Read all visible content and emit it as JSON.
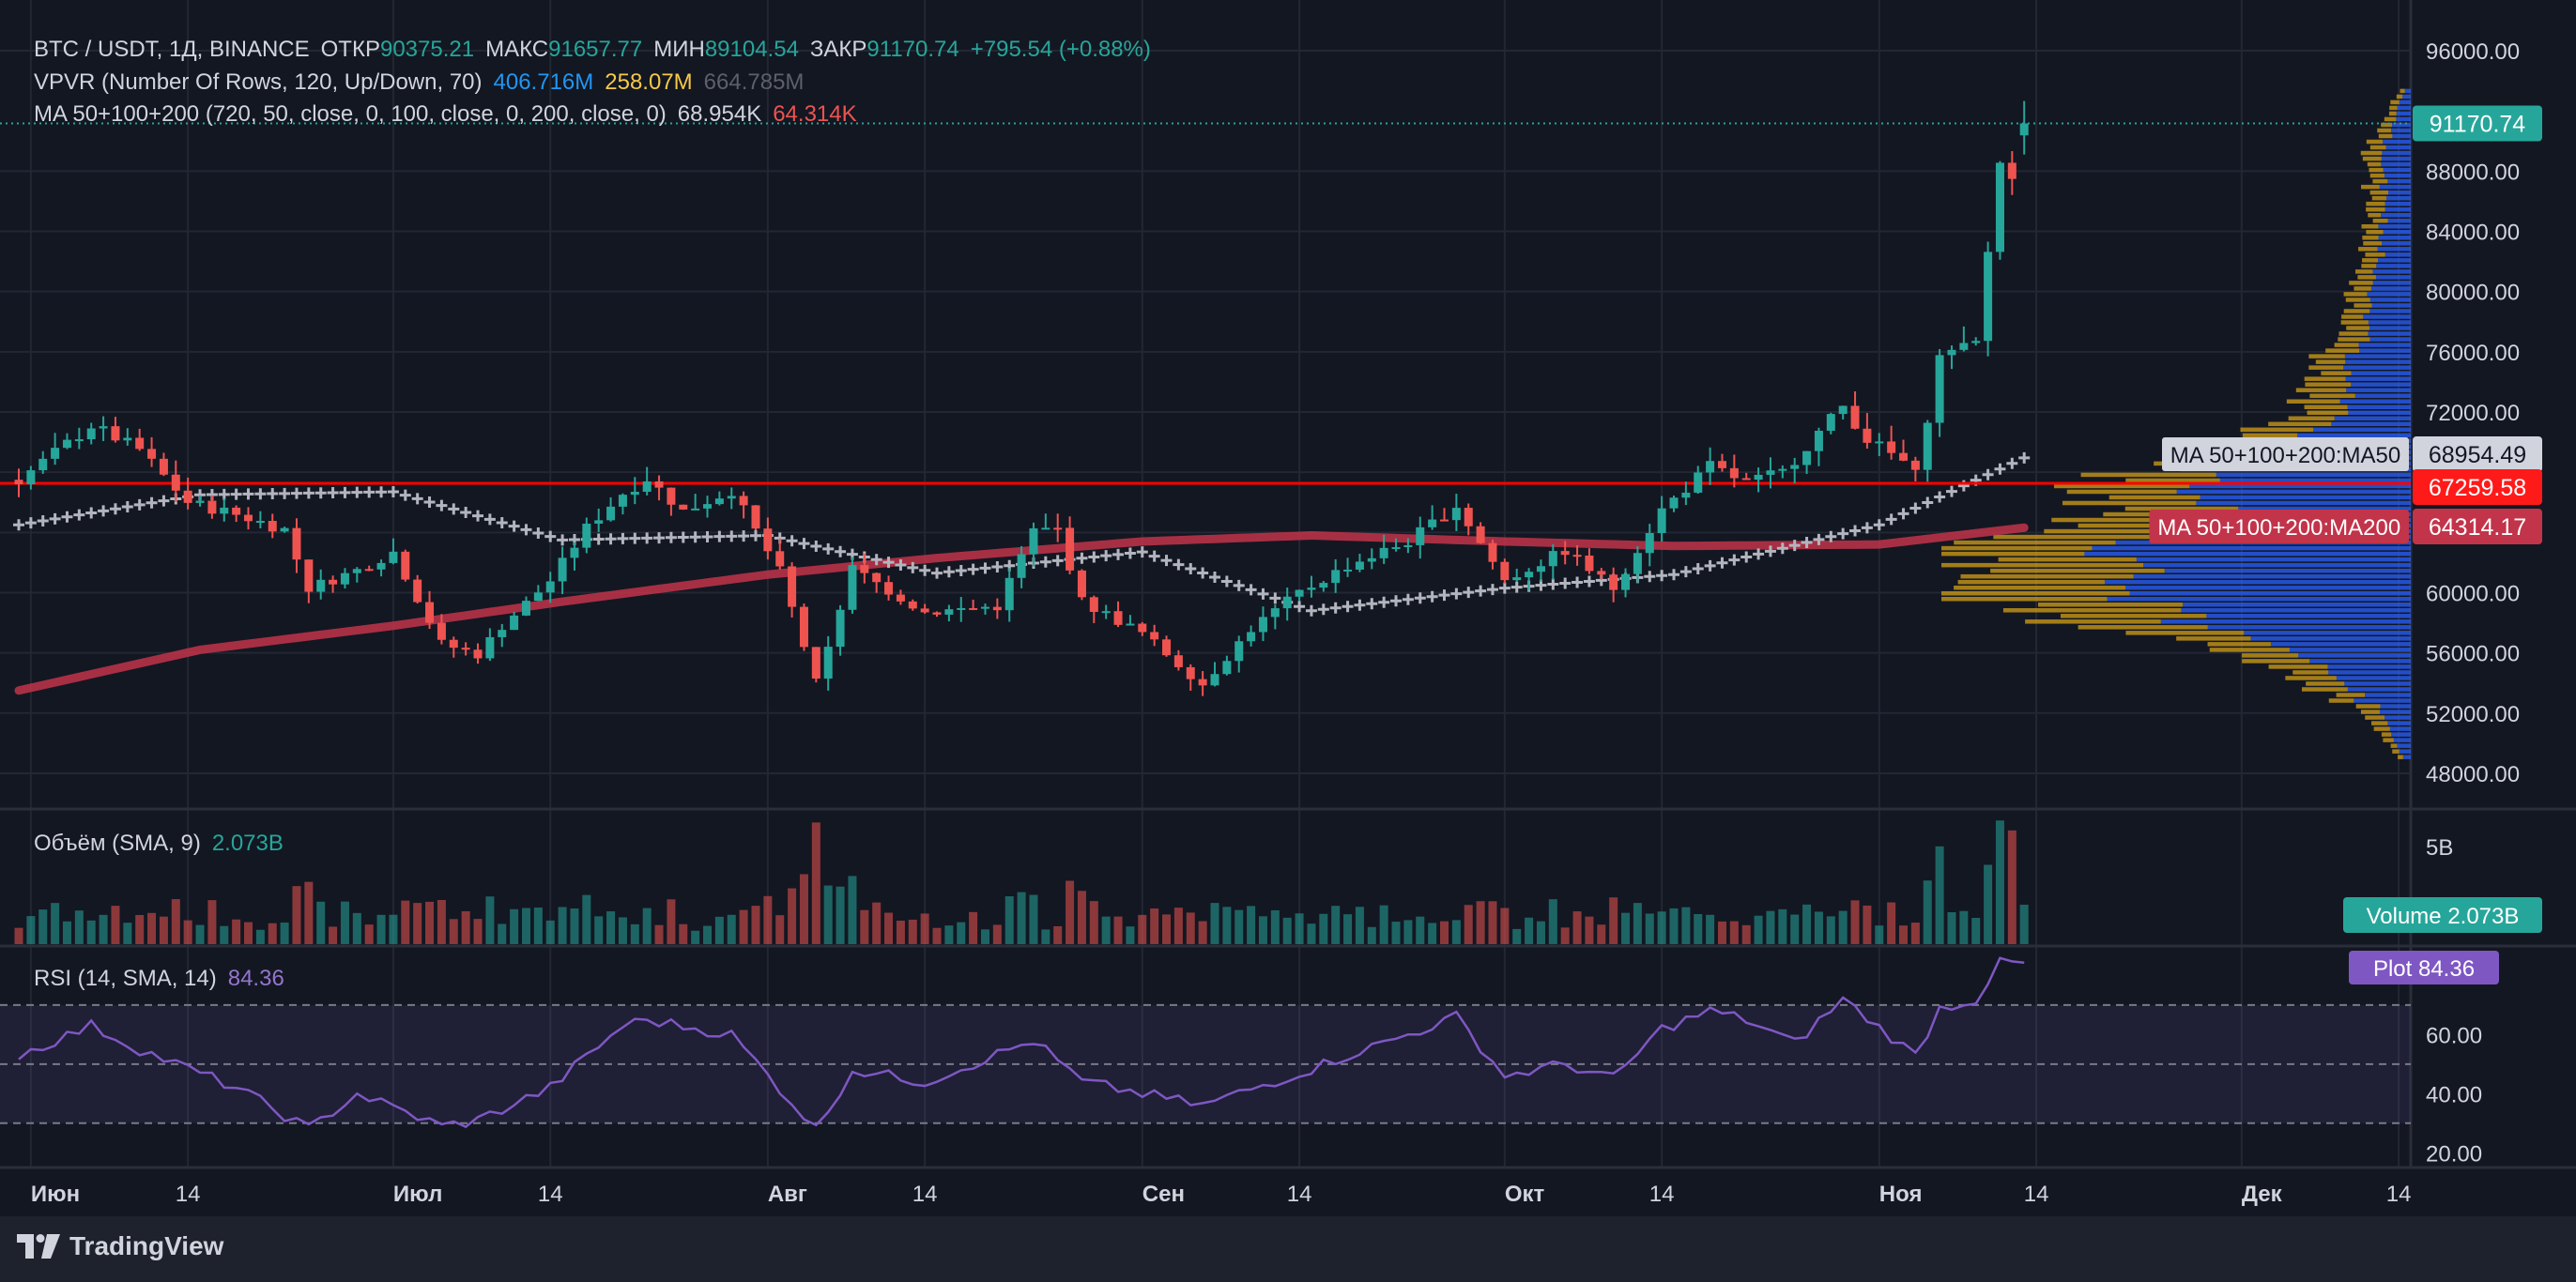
{
  "header": {
    "symbol": "BTC / USDT, 1Д, BINANCE",
    "open_label": "ОТКР",
    "open_value": "90375.21",
    "high_label": "МАКС",
    "high_value": "91657.77",
    "low_label": "МИН",
    "low_value": "89104.54",
    "close_label": "ЗАКР",
    "close_value": "91170.74",
    "change": "+795.54 (+0.88%)"
  },
  "vpvr": {
    "label": "VPVR (Number Of Rows, 120, Up/Down, 70)",
    "up_volume": "406.716M",
    "down_volume": "258.07M",
    "total_volume": "664.785M"
  },
  "ma": {
    "label": "MA 50+100+200 (720, 50, close, 0, 100, close, 0, 200, close, 0)",
    "ma50_value": "68.954K",
    "ma200_value": "64.314K"
  },
  "volume_legend": {
    "label": "Объём (SMA, 9)",
    "value": "2.073B"
  },
  "rsi_legend": {
    "label": "RSI (14, SMA, 14)",
    "value": "84.36"
  },
  "brand": {
    "name": "TradingView"
  },
  "colors": {
    "up": "#26a69a",
    "down": "#ef5350",
    "ma50": "#b2b5be",
    "ma200": "#c2344a",
    "hline": "#ff0000",
    "vp_up": "#2962ff",
    "vp_down": "#d4a017",
    "rsi": "#7e57c2",
    "background": "#131722",
    "grid": "#232733"
  },
  "chart_data": [
    {
      "type": "candlestick",
      "axis": "price",
      "ylim": [
        46000,
        98000
      ],
      "y_ticks": [
        48000,
        52000,
        56000,
        60000,
        64000,
        68000,
        72000,
        76000,
        80000,
        84000,
        88000,
        96000
      ],
      "y_tick_labels": [
        "48000.00",
        "52000.00",
        "56000.00",
        "60000.00",
        "64000.00",
        "68000.00",
        "72000.00",
        "76000.00",
        "80000.00",
        "84000.00",
        "88000.00",
        "96000.00"
      ],
      "x_labels": [
        {
          "label": "Июн",
          "date": "2024-06-01"
        },
        {
          "label": "14",
          "date": "2024-06-14"
        },
        {
          "label": "Июл",
          "date": "2024-07-01"
        },
        {
          "label": "14",
          "date": "2024-07-14"
        },
        {
          "label": "Авг",
          "date": "2024-08-01"
        },
        {
          "label": "14",
          "date": "2024-08-14"
        },
        {
          "label": "Сен",
          "date": "2024-09-01"
        },
        {
          "label": "14",
          "date": "2024-09-14"
        },
        {
          "label": "Окт",
          "date": "2024-10-01"
        },
        {
          "label": "14",
          "date": "2024-10-14"
        },
        {
          "label": "Ноя",
          "date": "2024-11-01"
        },
        {
          "label": "14",
          "date": "2024-11-14"
        },
        {
          "label": "Дек",
          "date": "2024-12-01"
        },
        {
          "label": "14",
          "date": "2024-12-14"
        }
      ],
      "x_range": [
        "2024-05-31",
        "2024-12-15"
      ],
      "last_date": "2024-11-13",
      "close_keypoints": [
        [
          "2024-05-31",
          67500
        ],
        [
          "2024-06-06",
          71100
        ],
        [
          "2024-06-10",
          69500
        ],
        [
          "2024-06-14",
          66000
        ],
        [
          "2024-06-18",
          65200
        ],
        [
          "2024-06-22",
          64200
        ],
        [
          "2024-06-24",
          60300
        ],
        [
          "2024-06-28",
          61500
        ],
        [
          "2024-07-01",
          62700
        ],
        [
          "2024-07-05",
          56600
        ],
        [
          "2024-07-08",
          55900
        ],
        [
          "2024-07-10",
          57800
        ],
        [
          "2024-07-14",
          60800
        ],
        [
          "2024-07-17",
          64300
        ],
        [
          "2024-07-20",
          66600
        ],
        [
          "2024-07-22",
          67600
        ],
        [
          "2024-07-25",
          65400
        ],
        [
          "2024-07-29",
          66800
        ],
        [
          "2024-08-02",
          61400
        ],
        [
          "2024-08-05",
          54000
        ],
        [
          "2024-08-08",
          61600
        ],
        [
          "2024-08-14",
          58700
        ],
        [
          "2024-08-20",
          59100
        ],
        [
          "2024-08-23",
          64100
        ],
        [
          "2024-08-25",
          64200
        ],
        [
          "2024-08-27",
          59400
        ],
        [
          "2024-09-01",
          57300
        ],
        [
          "2024-09-06",
          53900
        ],
        [
          "2024-09-10",
          57600
        ],
        [
          "2024-09-14",
          60000
        ],
        [
          "2024-09-18",
          61800
        ],
        [
          "2024-09-23",
          63400
        ],
        [
          "2024-09-27",
          65800
        ],
        [
          "2024-10-01",
          60800
        ],
        [
          "2024-10-06",
          62800
        ],
        [
          "2024-10-10",
          60300
        ],
        [
          "2024-10-14",
          65500
        ],
        [
          "2024-10-18",
          68400
        ],
        [
          "2024-10-21",
          67300
        ],
        [
          "2024-10-24",
          68000
        ],
        [
          "2024-10-29",
          72400
        ],
        [
          "2024-10-31",
          70200
        ],
        [
          "2024-11-03",
          68700
        ],
        [
          "2024-11-04",
          67800
        ],
        [
          "2024-11-06",
          75600
        ],
        [
          "2024-11-09",
          76500
        ],
        [
          "2024-11-11",
          88700
        ],
        [
          "2024-11-12",
          88000
        ],
        [
          "2024-11-13",
          91170.74
        ]
      ],
      "last_candle": {
        "open": 90375.21,
        "high": 91657.77,
        "low": 89104.54,
        "close": 91170.74
      },
      "horizontal_line": 67259.58,
      "price_labels": [
        {
          "value": 91170.74,
          "text": "91170.74",
          "color": "#26a69a"
        },
        {
          "value": 68954.49,
          "text": "68954.49",
          "color": "#d1d4dc",
          "name": "MA 50+100+200:MA50"
        },
        {
          "value": 67259.58,
          "text": "67259.58",
          "color": "#ff1a1a"
        },
        {
          "value": 64314.17,
          "text": "64314.17",
          "color": "#c2344a",
          "name": "MA 50+100+200:MA200"
        }
      ],
      "ma50_keypoints": [
        [
          "2024-05-31",
          64500
        ],
        [
          "2024-06-15",
          66500
        ],
        [
          "2024-07-01",
          66700
        ],
        [
          "2024-07-15",
          63500
        ],
        [
          "2024-08-01",
          63800
        ],
        [
          "2024-08-15",
          61300
        ],
        [
          "2024-09-01",
          62700
        ],
        [
          "2024-09-15",
          58800
        ],
        [
          "2024-10-01",
          60300
        ],
        [
          "2024-10-15",
          61200
        ],
        [
          "2024-11-01",
          64500
        ],
        [
          "2024-11-13",
          68954.49
        ]
      ],
      "ma200_keypoints": [
        [
          "2024-05-31",
          53500
        ],
        [
          "2024-06-15",
          56200
        ],
        [
          "2024-07-01",
          57800
        ],
        [
          "2024-07-15",
          59400
        ],
        [
          "2024-08-01",
          61200
        ],
        [
          "2024-08-15",
          62300
        ],
        [
          "2024-09-01",
          63400
        ],
        [
          "2024-09-15",
          63800
        ],
        [
          "2024-10-01",
          63400
        ],
        [
          "2024-10-15",
          63100
        ],
        [
          "2024-11-01",
          63200
        ],
        [
          "2024-11-13",
          64314.17
        ]
      ]
    },
    {
      "type": "horizontal_bar",
      "name": "VPVR",
      "ylim": [
        48500,
        93500
      ],
      "up_volume": 406.716,
      "down_volume": 258.07,
      "total_volume": 664.785,
      "unit": "M",
      "profile_keypoints": [
        [
          49000,
          0.03
        ],
        [
          52000,
          0.1
        ],
        [
          55000,
          0.3
        ],
        [
          57000,
          0.55
        ],
        [
          58500,
          0.85
        ],
        [
          60000,
          1.0
        ],
        [
          62000,
          0.95
        ],
        [
          63500,
          0.9
        ],
        [
          65000,
          0.7
        ],
        [
          67000,
          0.75
        ],
        [
          69000,
          0.45
        ],
        [
          72000,
          0.25
        ],
        [
          75000,
          0.22
        ],
        [
          78000,
          0.15
        ],
        [
          82000,
          0.1
        ],
        [
          86000,
          0.09
        ],
        [
          89000,
          0.1
        ],
        [
          92000,
          0.05
        ],
        [
          93500,
          0.02
        ]
      ]
    },
    {
      "type": "bar",
      "name": "Volume",
      "y_ticks": [
        5
      ],
      "y_tick_labels": [
        "5B"
      ],
      "ylim": [
        0,
        6.5
      ],
      "unit": "B",
      "last_value": 2.073,
      "last_label": "2.073B",
      "spikes": [
        [
          "2024-08-05",
          6.2
        ],
        [
          "2024-11-06",
          5.0
        ],
        [
          "2024-11-11",
          6.3
        ],
        [
          "2024-11-12",
          5.8
        ]
      ]
    },
    {
      "type": "line",
      "name": "RSI",
      "ylim": [
        15,
        90
      ],
      "y_ticks": [
        20,
        40,
        60
      ],
      "y_tick_labels": [
        "20.00",
        "40.00",
        "60.00"
      ],
      "bands": [
        30,
        50,
        70
      ],
      "last_value": 84.36,
      "plot_label": "Plot",
      "rsi_keypoints": [
        [
          "2024-05-31",
          53
        ],
        [
          "2024-06-06",
          63
        ],
        [
          "2024-06-10",
          55
        ],
        [
          "2024-06-18",
          42
        ],
        [
          "2024-06-24",
          28
        ],
        [
          "2024-06-28",
          40
        ],
        [
          "2024-07-05",
          29
        ],
        [
          "2024-07-08",
          31
        ],
        [
          "2024-07-14",
          42
        ],
        [
          "2024-07-20",
          63
        ],
        [
          "2024-07-22",
          65
        ],
        [
          "2024-07-29",
          60
        ],
        [
          "2024-08-05",
          28
        ],
        [
          "2024-08-08",
          48
        ],
        [
          "2024-08-14",
          44
        ],
        [
          "2024-08-23",
          58
        ],
        [
          "2024-08-27",
          44
        ],
        [
          "2024-09-06",
          36
        ],
        [
          "2024-09-14",
          47
        ],
        [
          "2024-09-18",
          53
        ],
        [
          "2024-09-23",
          60
        ],
        [
          "2024-09-27",
          66
        ],
        [
          "2024-10-01",
          46
        ],
        [
          "2024-10-06",
          50
        ],
        [
          "2024-10-10",
          45
        ],
        [
          "2024-10-14",
          62
        ],
        [
          "2024-10-18",
          68
        ],
        [
          "2024-10-21",
          65
        ],
        [
          "2024-10-25",
          57
        ],
        [
          "2024-10-29",
          72
        ],
        [
          "2024-11-03",
          56
        ],
        [
          "2024-11-04",
          53
        ],
        [
          "2024-11-06",
          69
        ],
        [
          "2024-11-09",
          72
        ],
        [
          "2024-11-11",
          84
        ],
        [
          "2024-11-13",
          84.36
        ]
      ]
    }
  ]
}
